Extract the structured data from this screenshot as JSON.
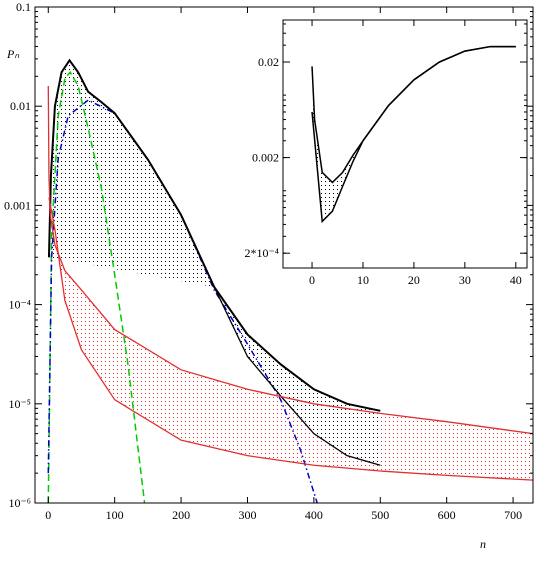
{
  "chart_data": [
    {
      "type": "line",
      "log_y": true,
      "y_label": "Pₙ",
      "x_label": "n",
      "xlim": [
        -20,
        730
      ],
      "ylim": [
        1e-06,
        0.1
      ],
      "xticks": [
        0,
        100,
        200,
        300,
        400,
        500,
        600,
        700
      ],
      "yticks": [
        {
          "value": 0.1,
          "label": "0.1"
        },
        {
          "value": 0.01,
          "label": "0.01"
        },
        {
          "value": 0.001,
          "label": "0.001"
        },
        {
          "value": 0.0001,
          "label": "10⁻⁴"
        },
        {
          "value": 1e-05,
          "label": "10⁻⁵"
        },
        {
          "value": 1e-06,
          "label": "10⁻⁶"
        }
      ],
      "shade": [
        {
          "between": [
            4,
            5
          ],
          "color": "#e03030"
        },
        {
          "between": [
            2,
            3
          ],
          "color": "#000000"
        }
      ],
      "series": [
        {
          "color": "#00cc00",
          "style": "dashed",
          "width": 1.5,
          "x": [
            0,
            5,
            15,
            25,
            33,
            45,
            60,
            80,
            100,
            120,
            145
          ],
          "values": [
            1e-06,
            0.0005,
            0.008,
            0.019,
            0.022,
            0.016,
            0.006,
            0.0015,
            0.0002,
            2.5e-05,
            1e-06
          ]
        },
        {
          "color": "#0000cc",
          "style": "dashdot",
          "width": 1.5,
          "x": [
            0,
            5,
            15,
            30,
            60,
            100,
            150,
            200,
            250,
            300,
            350,
            380,
            405
          ],
          "values": [
            2e-06,
            0.0003,
            0.003,
            0.008,
            0.0115,
            0.0085,
            0.0029,
            0.0008,
            0.00014,
            4e-05,
            1.1e-05,
            3.4e-06,
            1e-06
          ]
        },
        {
          "color": "#000000",
          "style": "solid",
          "width": 2,
          "x": [
            1,
            4,
            10,
            20,
            32,
            45,
            60,
            80,
            100,
            150,
            200,
            250,
            300,
            350,
            400,
            450,
            500
          ],
          "values": [
            0.0003,
            0.002,
            0.01,
            0.022,
            0.029,
            0.022,
            0.014,
            0.011,
            0.0085,
            0.0029,
            0.0008,
            0.00015,
            5e-05,
            2.5e-05,
            1.4e-05,
            1e-05,
            8.5e-06
          ]
        },
        {
          "color": "#000000",
          "style": "solid",
          "width": 1.3,
          "x": [
            250,
            300,
            350,
            400,
            450,
            500
          ],
          "values": [
            0.00015,
            3e-05,
            1.2e-05,
            5e-06,
            3e-06,
            2.4e-06
          ]
        },
        {
          "color": "#e03030",
          "style": "solid",
          "width": 1.3,
          "x": [
            0,
            1,
            3,
            10,
            25,
            50,
            100,
            200,
            300,
            400,
            500,
            600,
            730
          ],
          "values": [
            0.016,
            0.002,
            0.0008,
            0.0004,
            0.00022,
            0.00014,
            5.6e-05,
            2.2e-05,
            1.4e-05,
            1e-05,
            8e-06,
            6.6e-06,
            5e-06
          ]
        },
        {
          "color": "#e03030",
          "style": "solid",
          "width": 1.3,
          "x": [
            1,
            10,
            25,
            50,
            100,
            200,
            300,
            400,
            500,
            600,
            730
          ],
          "values": [
            0.0012,
            0.00057,
            0.00011,
            3.5e-05,
            1.1e-05,
            4.3e-06,
            3e-06,
            2.4e-06,
            2.1e-06,
            1.9e-06,
            1.7e-06
          ]
        }
      ]
    },
    {
      "type": "line",
      "log_y": true,
      "xlim": [
        -5.7,
        42.2
      ],
      "ylim": [
        0.00014,
        0.055
      ],
      "xticks": [
        0,
        10,
        20,
        30,
        40
      ],
      "yticks": [
        {
          "value": 0.02,
          "label": "0.02"
        },
        {
          "value": 0.002,
          "label": "0.002"
        },
        {
          "value": 0.0002,
          "label": "2*10⁻⁴"
        }
      ],
      "shade": [
        {
          "between": [
            0,
            1
          ],
          "color": "#000000"
        }
      ],
      "series": [
        {
          "color": "#000000",
          "style": "solid",
          "width": 1.5,
          "x": [
            0,
            0.5,
            2,
            4,
            6,
            8,
            10,
            15,
            20,
            25,
            30,
            35,
            40
          ],
          "values": [
            0.018,
            0.005,
            0.0014,
            0.0011,
            0.0014,
            0.0021,
            0.003,
            0.007,
            0.013,
            0.02,
            0.026,
            0.029,
            0.029
          ]
        },
        {
          "color": "#000000",
          "style": "solid",
          "width": 1.5,
          "x": [
            0,
            2,
            4,
            6,
            8,
            10,
            15,
            20,
            25,
            30,
            35,
            40
          ],
          "values": [
            0.006,
            0.00043,
            0.00055,
            0.001,
            0.0018,
            0.003,
            0.007,
            0.013,
            0.02,
            0.026,
            0.029,
            0.029
          ]
        }
      ]
    }
  ]
}
